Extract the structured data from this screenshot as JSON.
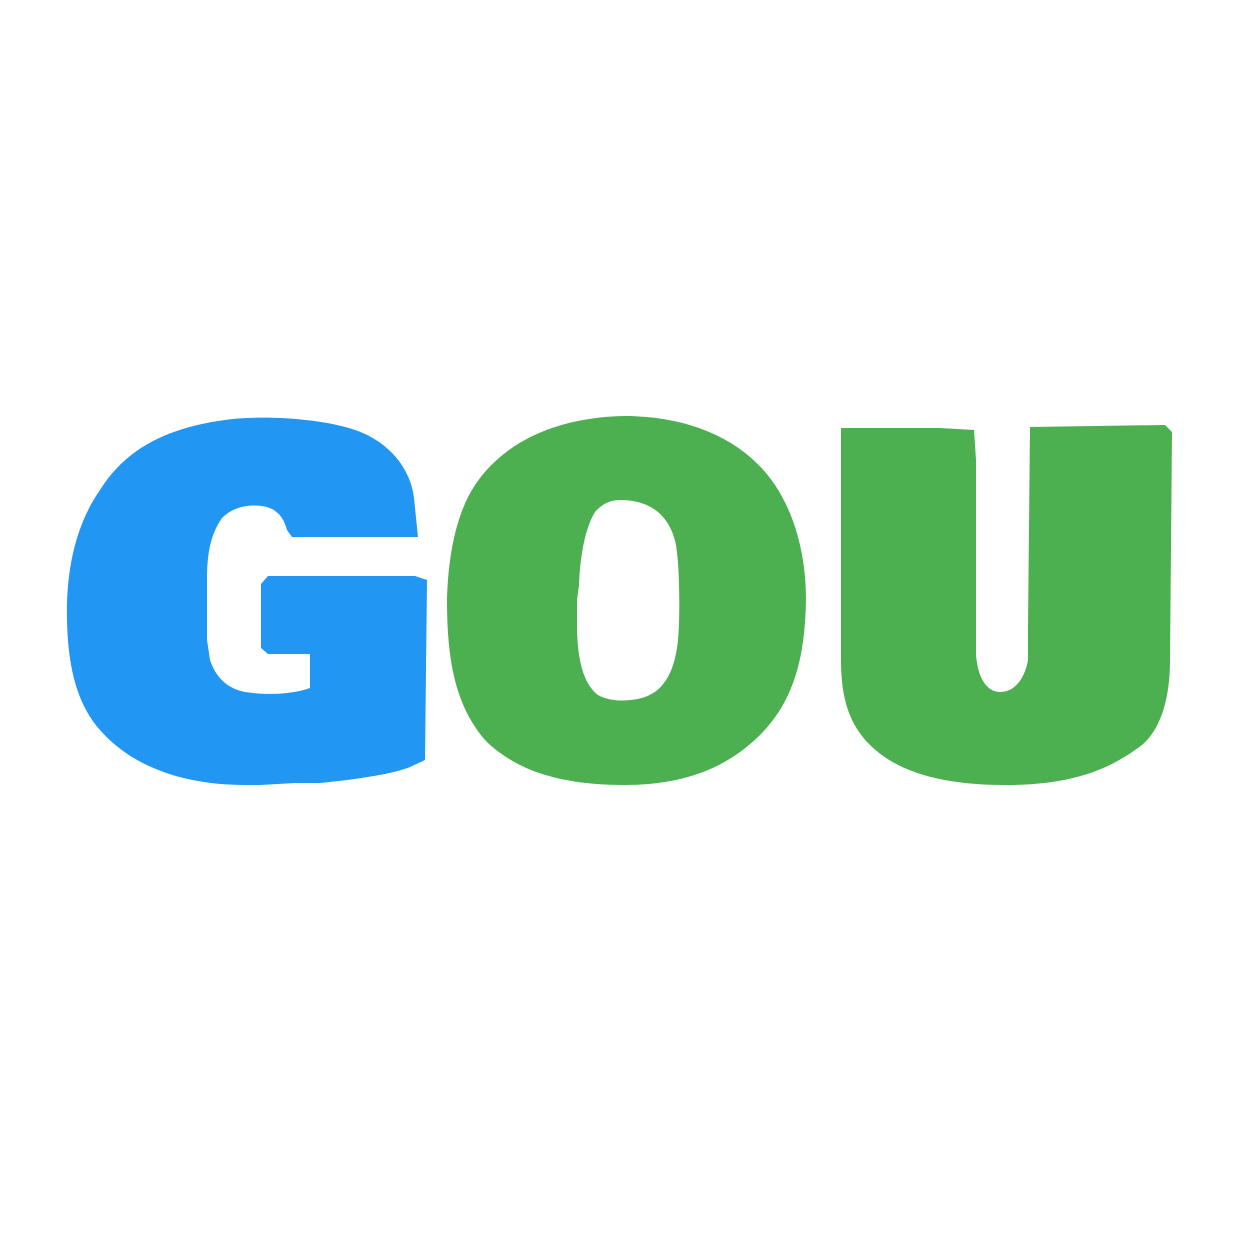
{
  "logo": {
    "text": "GOU",
    "letters": [
      {
        "char": "G",
        "color": "#2196F3"
      },
      {
        "char": "O",
        "color": "#4CAF50"
      },
      {
        "char": "U",
        "color": "#4CAF50"
      }
    ],
    "background": "#FFFFFF"
  }
}
